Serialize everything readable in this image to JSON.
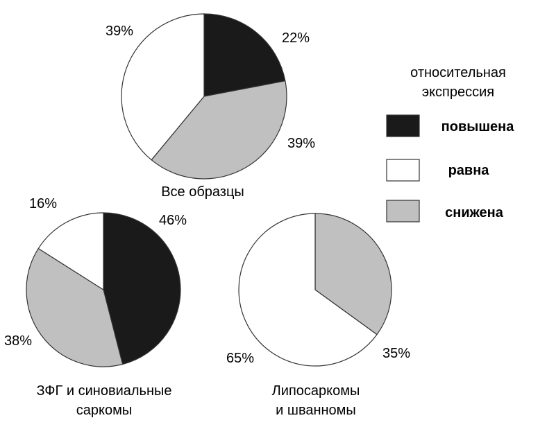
{
  "colors": {
    "повышена": "#1a1a1a",
    "равна": "#ffffff",
    "снижена": "#c0c0c0",
    "stroke": "#333333"
  },
  "legend": {
    "title_lines": [
      "относительная",
      "экспрессия"
    ],
    "items": [
      "повышена",
      "равна",
      "снижена"
    ]
  },
  "chart_data": [
    {
      "type": "pie",
      "title": "Все образцы",
      "slices": [
        {
          "category": "повышена",
          "value": 22,
          "label": "22%"
        },
        {
          "category": "снижена",
          "value": 39,
          "label": "39%"
        },
        {
          "category": "равна",
          "value": 39,
          "label": "39%"
        }
      ]
    },
    {
      "type": "pie",
      "title_lines": [
        "ЗФГ и синовиальные",
        "саркомы"
      ],
      "slices": [
        {
          "category": "повышена",
          "value": 46,
          "label": "46%"
        },
        {
          "category": "снижена",
          "value": 38,
          "label": "38%"
        },
        {
          "category": "равна",
          "value": 16,
          "label": "16%"
        }
      ]
    },
    {
      "type": "pie",
      "title_lines": [
        "Липосаркомы",
        "и шванномы"
      ],
      "slices": [
        {
          "category": "снижена",
          "value": 35,
          "label": "35%"
        },
        {
          "category": "равна",
          "value": 65,
          "label": "65%"
        }
      ]
    }
  ]
}
